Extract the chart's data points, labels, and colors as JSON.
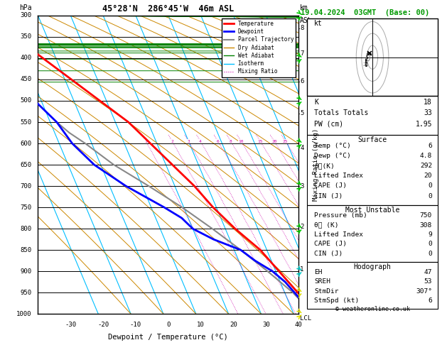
{
  "title_left": "45°28'N  286°45'W  46m ASL",
  "title_right": "19.04.2024  03GMT  (Base: 00)",
  "xlabel": "Dewpoint / Temperature (°C)",
  "ylabel_left": "hPa",
  "pressure_levels": [
    300,
    350,
    400,
    450,
    500,
    550,
    600,
    650,
    700,
    750,
    800,
    850,
    900,
    950,
    1000
  ],
  "temp_min": -40,
  "temp_max": 40,
  "isotherm_color": "#00bfff",
  "dry_adiabat_color": "#cc8800",
  "wet_adiabat_color": "#008000",
  "mixing_ratio_color": "#cc00aa",
  "mixing_ratio_values": [
    1,
    2,
    3,
    4,
    6,
    8,
    10,
    15,
    20,
    25
  ],
  "temp_profile_pressure": [
    1000,
    975,
    950,
    925,
    900,
    875,
    850,
    825,
    800,
    775,
    750,
    700,
    650,
    600,
    575,
    550,
    500,
    450,
    400,
    350,
    300
  ],
  "temp_profile_temp": [
    6,
    5.5,
    4.0,
    2.5,
    1.0,
    -0.5,
    -2.0,
    -4.5,
    -7.0,
    -9.0,
    -11.0,
    -14.0,
    -18.0,
    -22.0,
    -24.0,
    -26.0,
    -32.0,
    -38.0,
    -44.0,
    -50.0,
    -52.0
  ],
  "dewp_profile_pressure": [
    1000,
    975,
    950,
    925,
    900,
    875,
    850,
    825,
    800,
    775,
    750,
    700,
    650,
    600,
    575,
    550,
    500,
    450,
    400,
    350,
    300
  ],
  "dewp_profile_temp": [
    4.8,
    4.5,
    3.0,
    1.5,
    -1.0,
    -5.0,
    -8.0,
    -15.0,
    -20.0,
    -22.0,
    -26.0,
    -35.0,
    -42.0,
    -46.0,
    -47.0,
    -48.0,
    -52.0,
    -54.5,
    -57.0,
    -59.0,
    -60.0
  ],
  "parcel_pressure": [
    1000,
    950,
    900,
    850,
    800,
    750,
    700,
    650,
    600,
    575,
    550
  ],
  "parcel_temp": [
    6.0,
    2.5,
    -2.5,
    -8.0,
    -14.0,
    -20.5,
    -28.0,
    -36.0,
    -42.0,
    -45.5,
    -48.0
  ],
  "bg_color": "#ffffff",
  "temp_line_color": "#ff0000",
  "dewp_line_color": "#0000ff",
  "parcel_line_color": "#888888",
  "km_ticks": [
    1,
    2,
    3,
    4,
    5,
    6,
    7,
    8
  ],
  "km_pressures": [
    895,
    795,
    700,
    610,
    530,
    455,
    390,
    330
  ],
  "mixing_ratio_labels": [
    1,
    2,
    3,
    4,
    6,
    8,
    10,
    15,
    20,
    25
  ],
  "wind_barb_pressures": [
    300,
    400,
    500,
    600,
    700,
    800,
    900,
    950,
    1000
  ],
  "wind_barb_colors": [
    "#00cc00",
    "#00cc00",
    "#00cc00",
    "#00cc00",
    "#00cc00",
    "#00cc00",
    "#00cccc",
    "#dddd00",
    "#dddd00"
  ],
  "wind_barb_dirs": [
    270,
    280,
    290,
    300,
    310,
    300,
    290,
    280,
    270
  ],
  "stats": {
    "K": 18,
    "Totals_Totals": 33,
    "PW_cm": 1.95,
    "Surface_Temp": 6,
    "Surface_Dewp": 4.8,
    "Surface_thetae": 292,
    "Surface_LI": 20,
    "Surface_CAPE": 0,
    "Surface_CIN": 0,
    "MU_Pressure": 750,
    "MU_thetae": 308,
    "MU_LI": 9,
    "MU_CAPE": 0,
    "MU_CIN": 0,
    "EH": 47,
    "SREH": 53,
    "StmDir": 307,
    "StmSpd": 6
  },
  "copyright": "© weatheronline.co.uk"
}
